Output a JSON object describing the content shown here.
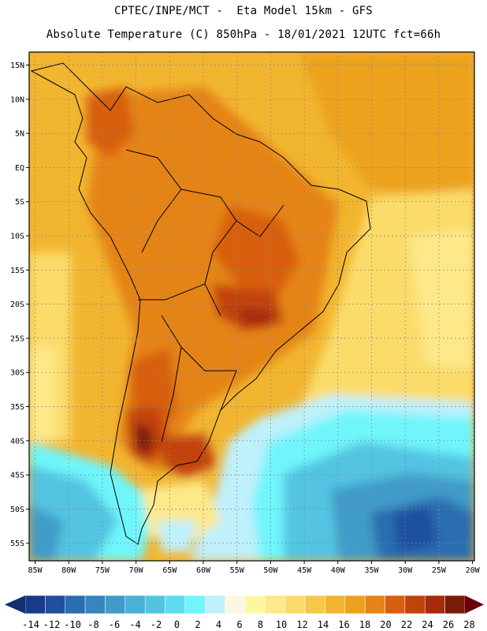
{
  "header": {
    "line1": "CPTEC/INPE/MCT -  Eta Model 15km - GFS",
    "line2": "Absolute Temperature (C) 850hPa - 18/01/2021 12UTC fct=66h"
  },
  "map": {
    "lat_labels": [
      "15N",
      "10N",
      "5N",
      "EQ",
      "5S",
      "10S",
      "15S",
      "20S",
      "25S",
      "30S",
      "35S",
      "40S",
      "45S",
      "50S",
      "55S"
    ],
    "lon_labels": [
      "85W",
      "80W",
      "75W",
      "70W",
      "65W",
      "60W",
      "55W",
      "50W",
      "45W",
      "40W",
      "35W",
      "30W",
      "25W",
      "20W"
    ],
    "lat_range": [
      15,
      -55
    ],
    "lon_range": [
      -85,
      -20
    ],
    "grid": true
  },
  "colorbar": {
    "labels": [
      "-14",
      "-12",
      "-10",
      "-8",
      "-6",
      "-4",
      "-2",
      "0",
      "2",
      "4",
      "6",
      "8",
      "10",
      "12",
      "14",
      "16",
      "18",
      "20",
      "22",
      "24",
      "26",
      "28"
    ],
    "colors": [
      "#1a3a8c",
      "#1f4f9e",
      "#2a6db0",
      "#3585be",
      "#3f9bc9",
      "#49b0d6",
      "#52c4e2",
      "#5fdcef",
      "#6ff5fb",
      "#bff0fb",
      "#fdf6e0",
      "#fdf7a0",
      "#fde98a",
      "#fbdc6a",
      "#f5c84a",
      "#f2b530",
      "#eca21c",
      "#e58418",
      "#d85e10",
      "#c2420b",
      "#a52b0a",
      "#7a1a08"
    ],
    "left_arrow_color": "#10306f",
    "right_arrow_color": "#6b0010"
  }
}
